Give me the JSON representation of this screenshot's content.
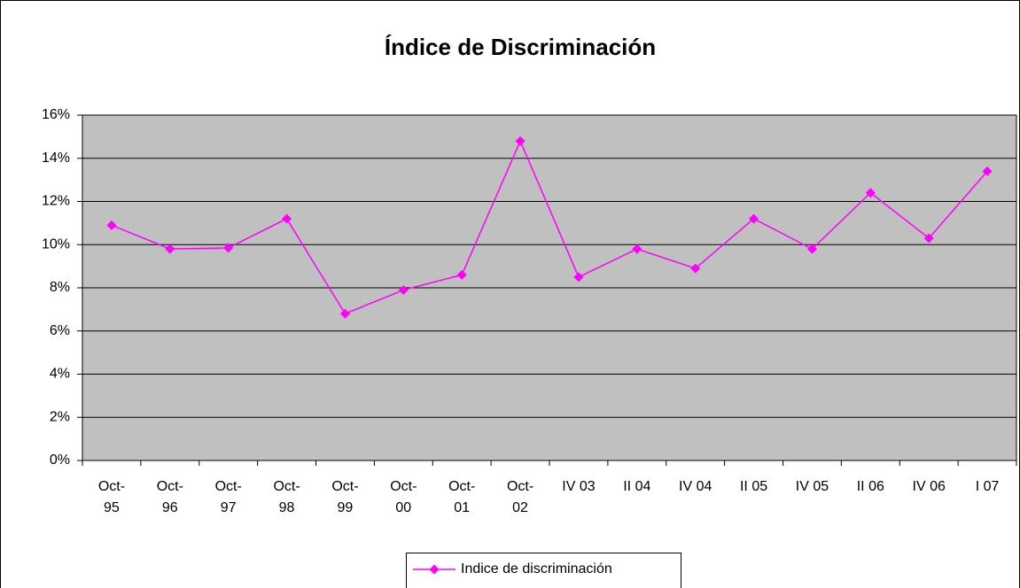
{
  "chart_data": {
    "type": "line",
    "title": "Índice de Discriminación",
    "categories": [
      "Oct-95",
      "Oct-96",
      "Oct-97",
      "Oct-98",
      "Oct-99",
      "Oct-00",
      "Oct-01",
      "Oct-02",
      "IV 03",
      "II 04",
      "IV 04",
      "II 05",
      "IV 05",
      "II 06",
      "IV 06",
      "I 07"
    ],
    "series": [
      {
        "name": "Indice de discriminación",
        "color": "#ff00ff",
        "values": [
          10.9,
          9.8,
          9.85,
          11.2,
          6.8,
          7.9,
          8.6,
          14.8,
          8.5,
          9.8,
          8.9,
          11.2,
          9.8,
          12.4,
          10.3,
          13.4
        ]
      }
    ],
    "ylim": [
      0,
      16
    ],
    "yticks": [
      {
        "value": 0,
        "label": "0%"
      },
      {
        "value": 2,
        "label": "2%"
      },
      {
        "value": 4,
        "label": "4%"
      },
      {
        "value": 6,
        "label": "6%"
      },
      {
        "value": 8,
        "label": "8%"
      },
      {
        "value": 10,
        "label": "10%"
      },
      {
        "value": 12,
        "label": "12%"
      },
      {
        "value": 14,
        "label": "14%"
      },
      {
        "value": 16,
        "label": "16%"
      }
    ],
    "grid": true,
    "plot_background": "#c0c0c0",
    "legend": "bottom"
  }
}
